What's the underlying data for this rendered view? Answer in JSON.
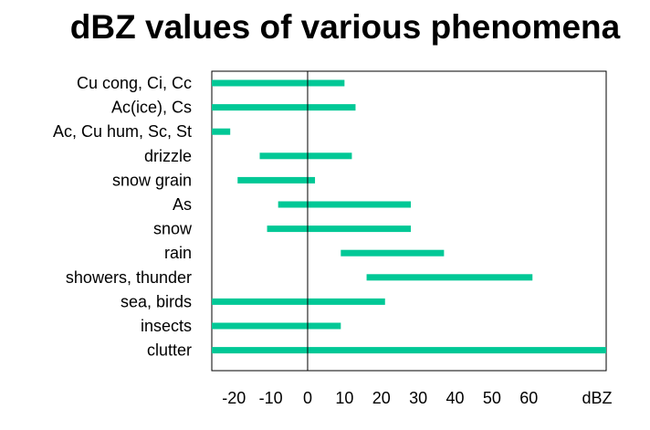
{
  "chart_data": {
    "type": "bar",
    "subtype": "floating-range-horizontal",
    "title": "dBZ values of various phenomena",
    "xlabel": "dBZ",
    "ylabel": "",
    "xlim": [
      -26,
      81
    ],
    "xticks": [
      -20,
      -10,
      0,
      10,
      20,
      30,
      40,
      50,
      60
    ],
    "xtick_labels": [
      "-20",
      "-10",
      "0",
      "10",
      "20",
      "30",
      "40",
      "50",
      "60"
    ],
    "reference_line_x": 0,
    "bar_color": "#00C896",
    "categories": [
      "Cu cong, Ci, Cc",
      "Ac(ice), Cs",
      "Ac, Cu hum, Sc, St",
      "drizzle",
      "snow grain",
      "As",
      "snow",
      "rain",
      "showers, thunder",
      "sea, birds",
      "insects",
      "clutter"
    ],
    "ranges": [
      [
        -26,
        10
      ],
      [
        -26,
        13
      ],
      [
        -26,
        -21
      ],
      [
        -13,
        12
      ],
      [
        -19,
        2
      ],
      [
        -8,
        28
      ],
      [
        -11,
        28
      ],
      [
        9,
        37
      ],
      [
        16,
        61
      ],
      [
        -26,
        21
      ],
      [
        -26,
        9
      ],
      [
        -26,
        81
      ]
    ]
  }
}
